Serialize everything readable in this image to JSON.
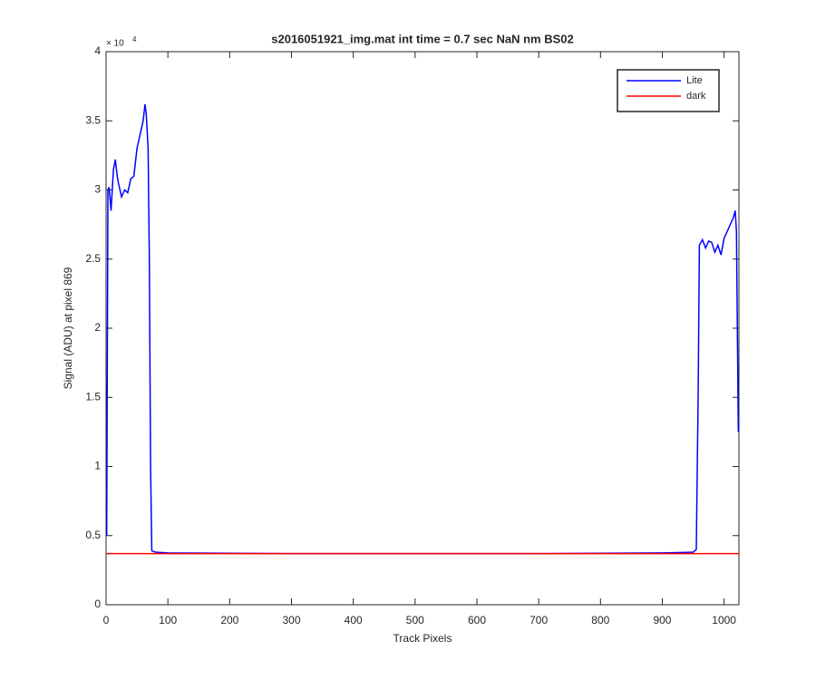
{
  "chart_data": {
    "type": "line",
    "title": "s2016051921_img.mat int time = 0.7 sec  NaN nm BS02",
    "x_label": "Track Pixels",
    "y_label": "Signal (ADU) at pixel 869",
    "y_exponent_label": "× 10",
    "y_exponent": "4",
    "xlim": [
      0,
      1024
    ],
    "ylim": [
      0,
      40000
    ],
    "xticks": [
      0,
      100,
      200,
      300,
      400,
      500,
      600,
      700,
      800,
      900,
      1000
    ],
    "yticks": [
      {
        "value": 0,
        "label": "0"
      },
      {
        "value": 5000,
        "label": "0.5"
      },
      {
        "value": 10000,
        "label": "1"
      },
      {
        "value": 15000,
        "label": "1.5"
      },
      {
        "value": 20000,
        "label": "2"
      },
      {
        "value": 25000,
        "label": "2.5"
      },
      {
        "value": 30000,
        "label": "3"
      },
      {
        "value": 35000,
        "label": "3.5"
      },
      {
        "value": 40000,
        "label": "4"
      }
    ],
    "legend_position": "upper right",
    "series": [
      {
        "name": "Lite",
        "color": "#0000ff",
        "x": [
          1,
          3,
          5,
          8,
          12,
          15,
          18,
          20,
          25,
          30,
          35,
          40,
          45,
          50,
          55,
          60,
          63,
          65,
          68,
          70,
          72,
          74,
          80,
          100,
          300,
          500,
          700,
          900,
          950,
          955,
          958,
          960,
          965,
          970,
          975,
          980,
          985,
          990,
          995,
          1000,
          1005,
          1010,
          1015,
          1018,
          1020,
          1023
        ],
        "values": [
          5000,
          30000,
          30200,
          28500,
          31500,
          32200,
          31000,
          30500,
          29500,
          30000,
          29800,
          30800,
          31000,
          33000,
          34000,
          35000,
          36200,
          35500,
          33000,
          25000,
          10000,
          3900,
          3800,
          3750,
          3700,
          3700,
          3700,
          3750,
          3800,
          4000,
          15000,
          26000,
          26400,
          25800,
          26300,
          26200,
          25500,
          26000,
          25300,
          26500,
          27000,
          27500,
          28000,
          28500,
          27000,
          12500
        ]
      },
      {
        "name": "dark",
        "color": "#ff0000",
        "x": [
          1,
          200,
          400,
          600,
          800,
          1024
        ],
        "values": [
          3700,
          3700,
          3700,
          3700,
          3700,
          3700
        ]
      }
    ]
  }
}
